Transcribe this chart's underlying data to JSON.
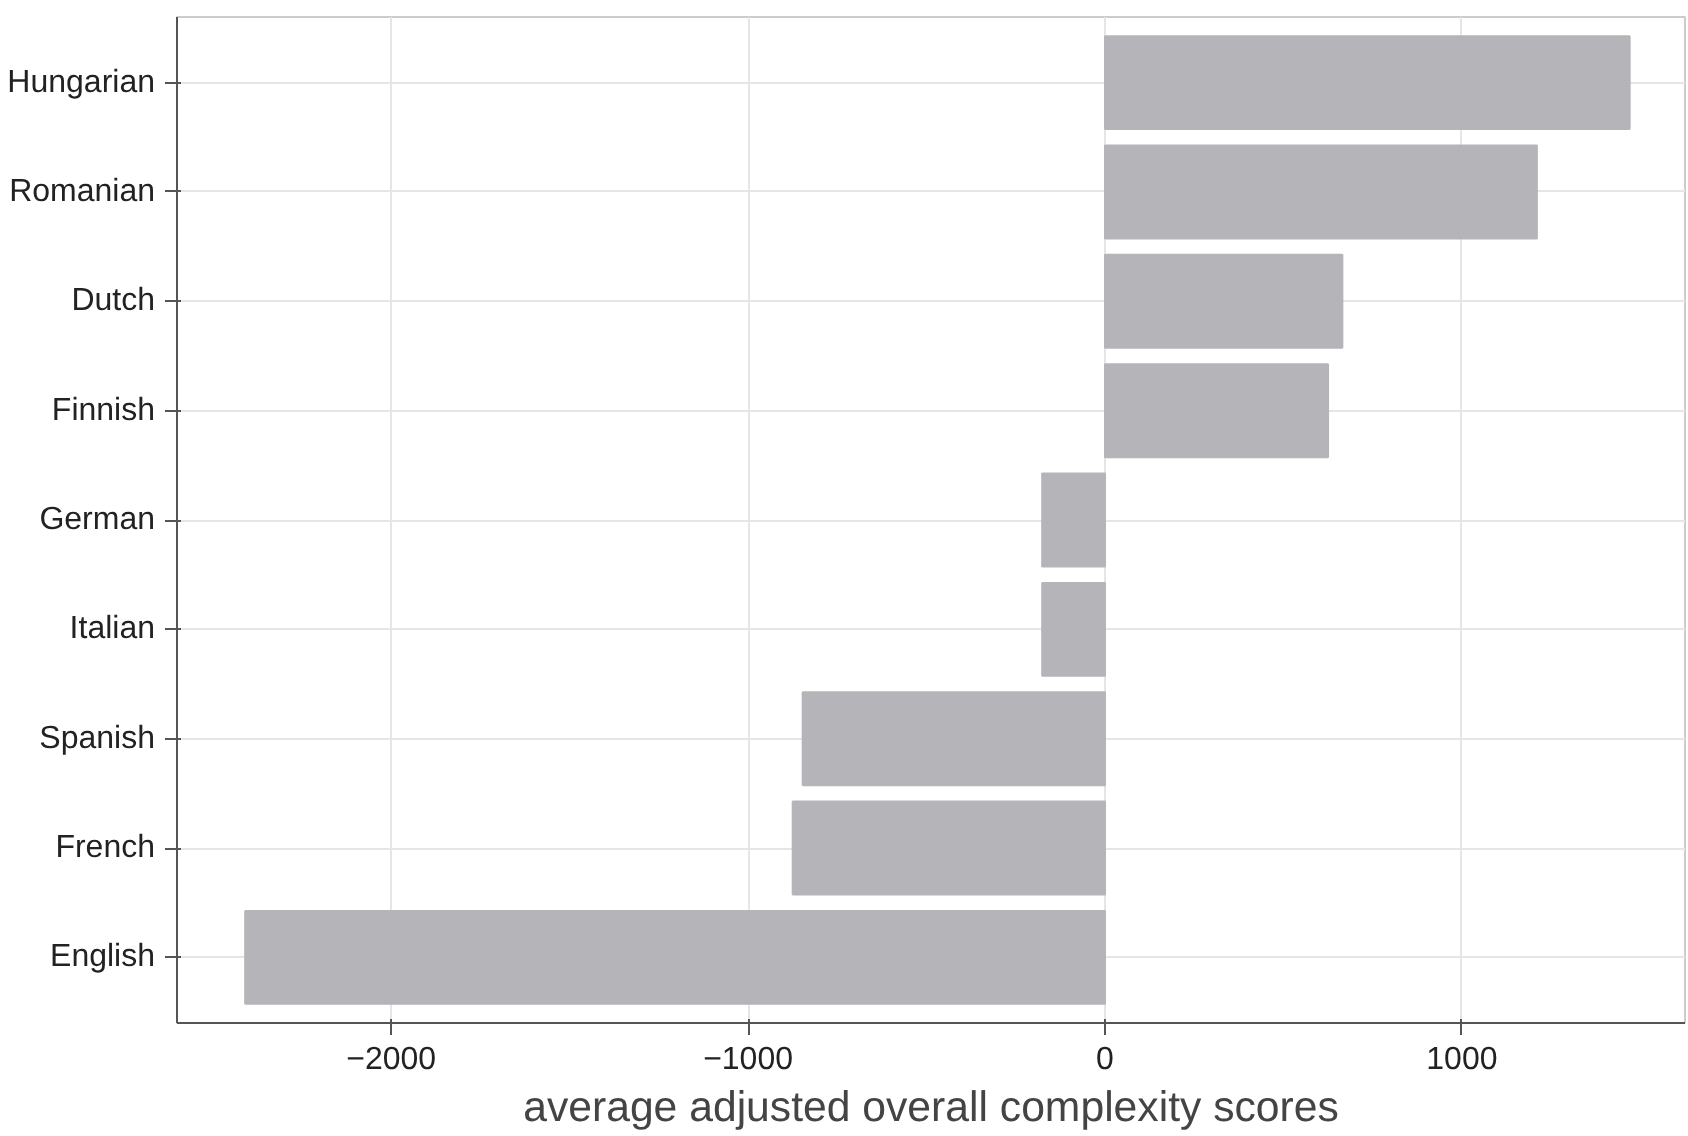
{
  "chart_data": {
    "type": "bar",
    "orientation": "horizontal",
    "xlabel": "average adjusted overall complexity scores",
    "categories": [
      "Hungarian",
      "Romanian",
      "Dutch",
      "Finnish",
      "German",
      "Italian",
      "Spanish",
      "French",
      "English"
    ],
    "values": [
      1470,
      1210,
      665,
      625,
      -176,
      -176,
      -847,
      -875,
      -2409
    ],
    "color": "#b5b5b9",
    "xlim": [
      -2600,
      1625
    ],
    "xticks": [
      -2000,
      -1000,
      0,
      1000
    ],
    "grid": true
  }
}
